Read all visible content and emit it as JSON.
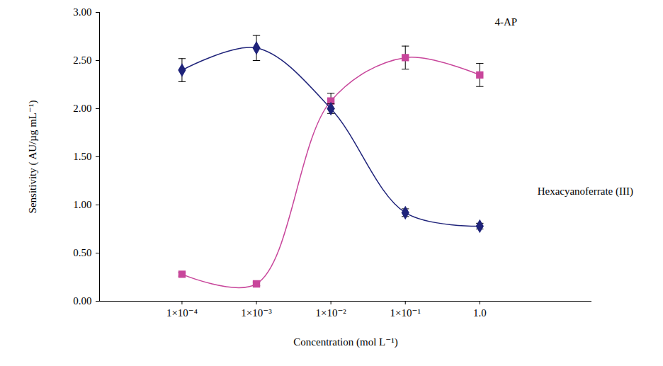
{
  "chart_data": {
    "type": "line",
    "x_label": "Concentration (mol L⁻¹)",
    "y_label": "Sensitivity ( AU/µg mL⁻¹)",
    "x": [
      0.0001,
      0.001,
      0.01,
      0.1,
      1
    ],
    "series": [
      {
        "name": "4-AP",
        "color": "#c8469b",
        "marker": "square",
        "line_style": "solid",
        "values": [
          0.28,
          0.18,
          2.08,
          2.53,
          2.35
        ],
        "errors": [
          0.02,
          0.02,
          0.08,
          0.12,
          0.12
        ]
      },
      {
        "name": "Hexacyanoferrate (III)",
        "color": "#1f237a",
        "marker": "diamond",
        "line_style": "solid",
        "values": [
          2.4,
          2.63,
          2.0,
          0.92,
          0.78
        ],
        "errors": [
          0.12,
          0.13,
          0.05,
          0.04,
          0.03
        ]
      }
    ],
    "log": "x",
    "xlim": [
      7.8e-06,
      32
    ],
    "xticks": [
      {
        "value": 0.0001,
        "label": "1×10⁻⁴"
      },
      {
        "value": 0.001,
        "label": "1×10⁻³"
      },
      {
        "value": 0.01,
        "label": "1×10⁻²"
      },
      {
        "value": 0.1,
        "label": "1×10⁻¹"
      },
      {
        "value": 1,
        "label": "1.0"
      }
    ],
    "ylim": [
      0,
      3
    ],
    "yticks": [
      {
        "value": 0,
        "label": "0.00"
      },
      {
        "value": 0.5,
        "label": "0.50"
      },
      {
        "value": 1,
        "label": "1.00"
      },
      {
        "value": 1.5,
        "label": "1.50"
      },
      {
        "value": 2,
        "label": "2.00"
      },
      {
        "value": 2.5,
        "label": "2.50"
      },
      {
        "value": 3,
        "label": "3.00"
      }
    ],
    "grid": false
  }
}
